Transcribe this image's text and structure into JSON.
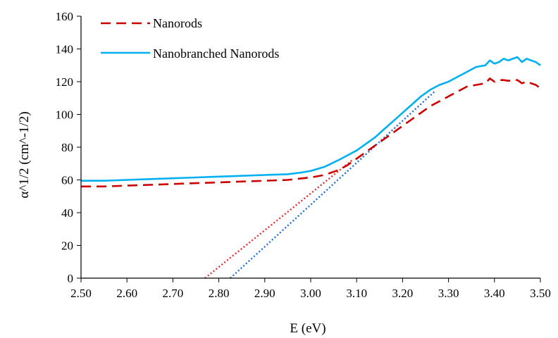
{
  "chart_data": {
    "type": "line",
    "title": "",
    "xlabel": "E (eV)",
    "ylabel": "α^1/2 (cm^-1/2)",
    "xlim": [
      2.5,
      3.5
    ],
    "ylim": [
      0,
      160
    ],
    "xticks": [
      "2.50",
      "2.60",
      "2.70",
      "2.80",
      "2.90",
      "3.00",
      "3.10",
      "3.20",
      "3.30",
      "3.40",
      "3.50"
    ],
    "yticks": [
      "0",
      "20",
      "40",
      "60",
      "80",
      "100",
      "120",
      "140",
      "160"
    ],
    "grid": false,
    "legend_position": "top-left",
    "series": [
      {
        "name": "Nanorods",
        "style": "dashed",
        "color": "#cc0000",
        "x": [
          2.5,
          2.55,
          2.6,
          2.65,
          2.7,
          2.75,
          2.8,
          2.85,
          2.9,
          2.95,
          3.0,
          3.03,
          3.06,
          3.08,
          3.1,
          3.12,
          3.14,
          3.16,
          3.18,
          3.2,
          3.22,
          3.24,
          3.26,
          3.28,
          3.3,
          3.32,
          3.34,
          3.36,
          3.37,
          3.38,
          3.39,
          3.4,
          3.41,
          3.42,
          3.43,
          3.44,
          3.45,
          3.46,
          3.47,
          3.48,
          3.49,
          3.5
        ],
        "y": [
          56,
          56,
          56.5,
          57,
          57.5,
          58,
          58.5,
          59,
          59.5,
          60,
          61.5,
          63,
          66,
          69,
          73,
          77,
          81,
          85,
          89,
          93,
          97,
          101,
          105,
          108,
          111,
          114,
          117,
          118,
          118.5,
          119,
          122,
          120,
          121,
          121,
          120.5,
          121,
          121,
          119,
          120,
          119,
          118,
          116
        ]
      },
      {
        "name": "Nanobranched Nanorods",
        "style": "solid",
        "color": "#00b0f0",
        "x": [
          2.5,
          2.55,
          2.6,
          2.65,
          2.7,
          2.75,
          2.8,
          2.85,
          2.9,
          2.95,
          2.98,
          3.0,
          3.03,
          3.06,
          3.08,
          3.1,
          3.12,
          3.14,
          3.16,
          3.18,
          3.2,
          3.22,
          3.24,
          3.26,
          3.28,
          3.3,
          3.32,
          3.34,
          3.36,
          3.38,
          3.39,
          3.4,
          3.41,
          3.42,
          3.43,
          3.44,
          3.45,
          3.46,
          3.47,
          3.48,
          3.49,
          3.5
        ],
        "y": [
          59.5,
          59.5,
          60,
          60.5,
          61,
          61.5,
          62,
          62.5,
          63,
          63.5,
          64.5,
          65.5,
          68,
          72,
          75,
          78,
          82,
          86,
          91,
          96,
          101,
          106,
          111,
          115,
          118,
          120,
          123,
          126,
          129,
          130,
          133,
          131,
          132,
          134,
          133,
          134,
          135,
          132,
          134,
          133,
          132,
          130
        ]
      },
      {
        "name": "",
        "style": "dotted",
        "color": "#e03030",
        "x": [
          2.77,
          3.09
        ],
        "y": [
          0,
          72
        ]
      },
      {
        "name": "",
        "style": "dotted",
        "color": "#1f6fd6",
        "x": [
          2.825,
          3.27
        ],
        "y": [
          0,
          114
        ]
      }
    ]
  }
}
